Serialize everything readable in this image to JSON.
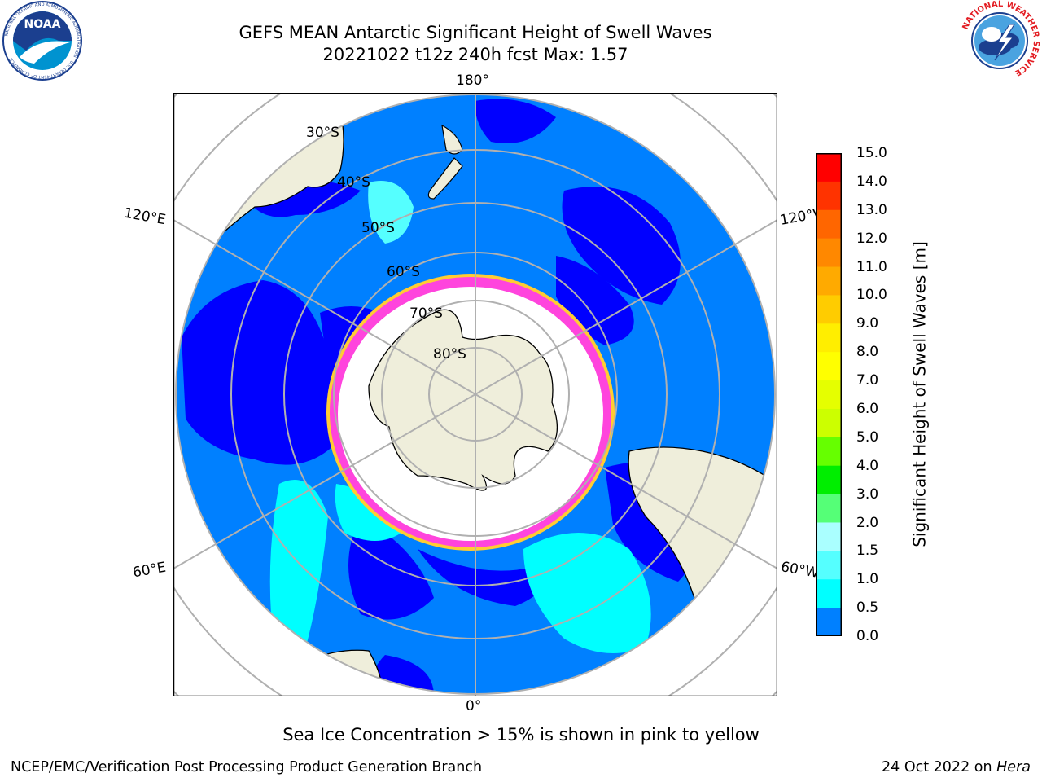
{
  "header": {
    "title_line1": "GEFS MEAN Antarctic Significant Height of Swell Waves",
    "title_line2": "20221022 t12z 240h fcst   Max: 1.57"
  },
  "logos": {
    "noaa": {
      "text": "NOAA",
      "ring_text": "NATIONAL OCEANIC AND ATMOSPHERIC ADMINISTRATION · U.S. DEPARTMENT OF COMMERCE"
    },
    "nws": {
      "ring_text": "NATIONAL WEATHER SERVICE"
    }
  },
  "map": {
    "projection": "south-polar-stereographic",
    "longitude_labels": {
      "top": "180°",
      "bottom": "0°",
      "upper_left": "120°E",
      "upper_right": "120°W",
      "lower_left": "60°E",
      "lower_right": "60°W"
    },
    "latitude_labels": [
      "30°S",
      "40°S",
      "50°S",
      "60°S",
      "70°S",
      "80°S"
    ],
    "colors": {
      "ocean_dark": "#0000ff",
      "ocean": "#0080ff",
      "swell_1_5": "#00ffff",
      "land": "#efeedb",
      "sea_ice": "#ffffff",
      "ice_edge": "#ff44dd",
      "ice_edge_outer": "#ffcc33",
      "grid": "#b0b0b0"
    }
  },
  "colorbar": {
    "label": "Significant Height of Swell Waves [m]",
    "ticks": [
      "15.0",
      "14.0",
      "13.0",
      "12.0",
      "11.0",
      "10.0",
      "9.0",
      "8.0",
      "7.0",
      "6.0",
      "5.0",
      "4.0",
      "3.0",
      "2.0",
      "1.5",
      "1.0",
      "0.5",
      "0.0"
    ],
    "colors": [
      "#ff0000",
      "#ff3300",
      "#ff6600",
      "#ff8800",
      "#ffaa00",
      "#ffcc00",
      "#ffee00",
      "#ffff00",
      "#e5ff00",
      "#ccff00",
      "#66ff00",
      "#00ee00",
      "#55ff77",
      "#aaffff",
      "#55ffff",
      "#00ffff",
      "#0080ff",
      "#0000ff"
    ]
  },
  "annotation": "Sea Ice Concentration > 15% is shown in pink to yellow",
  "footer": {
    "left": "NCEP/EMC/Verification Post Processing Product Generation Branch",
    "right_prefix": "24 Oct 2022 on ",
    "right_machine": "Hera"
  }
}
